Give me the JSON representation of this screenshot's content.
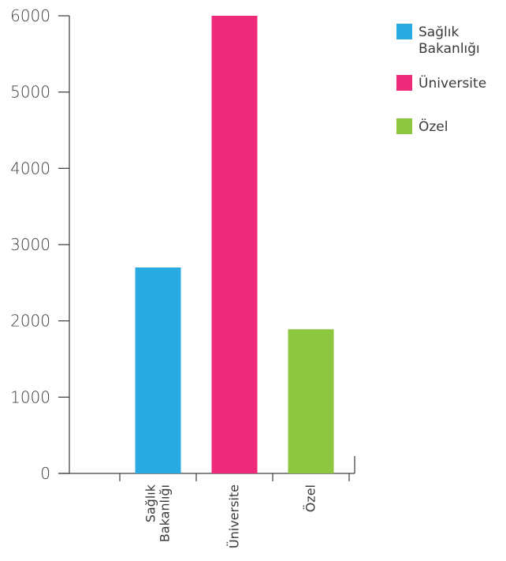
{
  "chart_data": {
    "type": "bar",
    "title": "",
    "xlabel": "",
    "ylabel": "",
    "ylim": [
      0,
      6000
    ],
    "yticks": [
      0,
      1000,
      2000,
      3000,
      4000,
      5000,
      6000
    ],
    "categories": [
      "Sağlık Bakanlığı",
      "Üniversite",
      "Özel"
    ],
    "values": [
      2700,
      6000,
      1890
    ],
    "colors": [
      "#29abe2",
      "#ee2a7b",
      "#8dc63f"
    ],
    "legend": {
      "placement": "top-right",
      "entries": [
        {
          "label": "Sağlık Bakanlığı",
          "color": "#29abe2"
        },
        {
          "label": "Üniversite",
          "color": "#ee2a7b"
        },
        {
          "label": "Özel",
          "color": "#8dc63f"
        }
      ]
    },
    "grid": false
  }
}
